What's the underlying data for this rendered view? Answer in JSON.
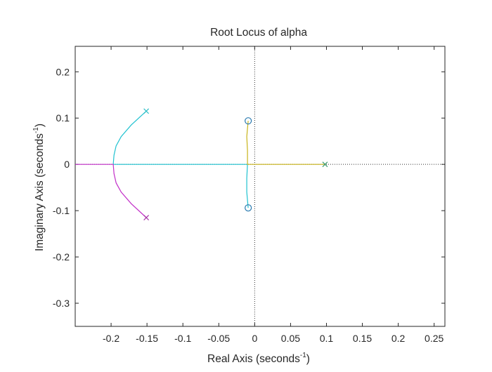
{
  "chart_data": {
    "type": "scatter",
    "title": "Root Locus of alpha",
    "xlabel": {
      "main": "Real Axis (seconds",
      "sup": "-1",
      "close": ")"
    },
    "ylabel": {
      "main": "Imaginary Axis (seconds",
      "sup": "-1",
      "close": ")"
    },
    "xlim": [
      -0.25,
      0.265
    ],
    "ylim": [
      -0.35,
      0.255
    ],
    "xticks": [
      -0.2,
      -0.15,
      -0.1,
      -0.05,
      0,
      0.05,
      0.1,
      0.15,
      0.2,
      0.25
    ],
    "xtick_labels": [
      "-0.2",
      "-0.15",
      "-0.1",
      "-0.05",
      "0",
      "0.05",
      "0.1",
      "0.15",
      "0.2",
      "0.25"
    ],
    "yticks": [
      -0.3,
      -0.2,
      -0.1,
      0,
      0.1,
      0.2
    ],
    "ytick_labels": [
      "-0.3",
      "-0.2",
      "-0.1",
      "0",
      "0.1",
      "0.2"
    ],
    "grid": false,
    "poles": [
      {
        "x": -0.151,
        "y": 0.115,
        "color": "#2ebfc6"
      },
      {
        "x": -0.151,
        "y": -0.115,
        "color": "#a832a8"
      },
      {
        "x": 0.098,
        "y": 0.0,
        "color": "#3a9a6e"
      }
    ],
    "zeros": [
      {
        "x": -0.009,
        "y": 0.094,
        "color": "#2a7ab0"
      },
      {
        "x": -0.009,
        "y": -0.094,
        "color": "#2a7ab0"
      }
    ],
    "branches": [
      {
        "color": "#1fc2d0",
        "points": [
          [
            -0.151,
            0.115
          ],
          [
            -0.172,
            0.085
          ],
          [
            -0.186,
            0.06
          ],
          [
            -0.193,
            0.04
          ],
          [
            -0.196,
            0.02
          ],
          [
            -0.197,
            0.0
          ],
          [
            -0.01,
            0.0
          ],
          [
            -0.011,
            -0.03
          ],
          [
            -0.011,
            -0.06
          ],
          [
            -0.009,
            -0.094
          ]
        ]
      },
      {
        "color": "#c22fc8",
        "points": [
          [
            -0.151,
            -0.115
          ],
          [
            -0.172,
            -0.085
          ],
          [
            -0.186,
            -0.06
          ],
          [
            -0.193,
            -0.04
          ],
          [
            -0.196,
            -0.02
          ],
          [
            -0.197,
            0.0
          ],
          [
            -0.25,
            0.0
          ]
        ]
      },
      {
        "color": "#c8b41a",
        "points": [
          [
            0.098,
            0.0
          ],
          [
            -0.01,
            0.0
          ],
          [
            -0.01,
            0.03
          ],
          [
            -0.011,
            0.06
          ],
          [
            -0.009,
            0.094
          ]
        ]
      }
    ],
    "reference_lines": {
      "vertical_x": 0,
      "horizontal_y": 0
    }
  }
}
